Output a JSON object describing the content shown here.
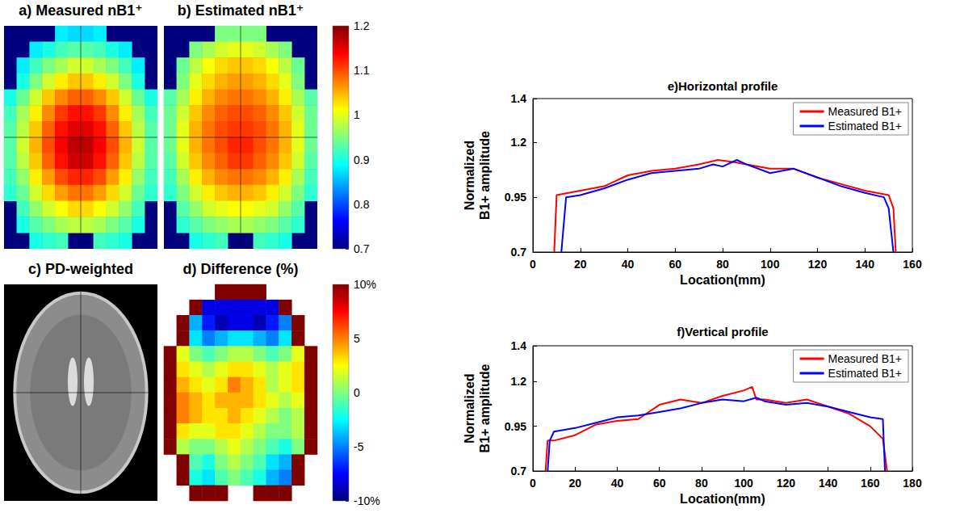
{
  "chart_data": [
    {
      "type": "heatmap",
      "title": "a) Measured nB1⁺",
      "cells": [
        [
          null,
          null,
          null,
          null,
          0.88,
          0.87,
          0.87,
          0.88,
          null,
          null,
          null,
          null
        ],
        [
          null,
          null,
          0.88,
          0.9,
          0.92,
          0.93,
          0.93,
          0.92,
          0.9,
          0.88,
          null,
          null
        ],
        [
          null,
          0.88,
          0.92,
          0.95,
          0.97,
          0.99,
          0.99,
          0.97,
          0.95,
          0.92,
          0.88,
          null
        ],
        [
          null,
          0.9,
          0.95,
          0.99,
          1.02,
          1.04,
          1.04,
          1.02,
          0.99,
          0.95,
          0.9,
          null
        ],
        [
          0.9,
          0.94,
          0.99,
          1.04,
          1.07,
          1.09,
          1.09,
          1.07,
          1.04,
          0.99,
          0.94,
          0.9
        ],
        [
          0.92,
          0.97,
          1.02,
          1.07,
          1.11,
          1.13,
          1.13,
          1.11,
          1.07,
          1.02,
          0.97,
          0.92
        ],
        [
          0.93,
          0.98,
          1.04,
          1.09,
          1.13,
          1.15,
          1.15,
          1.13,
          1.09,
          1.04,
          0.98,
          0.93
        ],
        [
          0.93,
          0.99,
          1.05,
          1.1,
          1.14,
          1.17,
          1.17,
          1.14,
          1.1,
          1.05,
          0.99,
          0.93
        ],
        [
          0.93,
          0.98,
          1.04,
          1.09,
          1.13,
          1.16,
          1.16,
          1.13,
          1.09,
          1.04,
          0.98,
          0.93
        ],
        [
          0.92,
          0.96,
          1.02,
          1.06,
          1.1,
          1.12,
          1.12,
          1.1,
          1.06,
          1.02,
          0.96,
          0.92
        ],
        [
          0.91,
          0.94,
          0.99,
          1.03,
          1.06,
          1.08,
          1.08,
          1.06,
          1.03,
          0.99,
          0.94,
          0.91
        ],
        [
          null,
          0.92,
          0.96,
          0.99,
          1.01,
          1.03,
          1.03,
          1.01,
          0.99,
          0.96,
          0.92,
          null
        ],
        [
          null,
          0.9,
          0.93,
          0.95,
          0.97,
          0.98,
          0.98,
          0.97,
          0.95,
          0.93,
          0.9,
          null
        ],
        [
          null,
          null,
          0.9,
          0.91,
          0.92,
          null,
          null,
          0.92,
          0.91,
          0.9,
          null,
          null
        ]
      ]
    },
    {
      "type": "heatmap",
      "title": "b) Estimated nB1⁺",
      "cells": [
        [
          null,
          null,
          null,
          null,
          0.95,
          0.95,
          0.95,
          0.95,
          null,
          null,
          null,
          null
        ],
        [
          null,
          null,
          0.95,
          0.97,
          0.99,
          1,
          1,
          0.99,
          0.97,
          0.95,
          null,
          null
        ],
        [
          null,
          0.94,
          0.98,
          1.01,
          1.03,
          1.04,
          1.04,
          1.03,
          1.01,
          0.98,
          0.94,
          null
        ],
        [
          null,
          0.95,
          1,
          1.03,
          1.05,
          1.06,
          1.06,
          1.05,
          1.03,
          1,
          0.95,
          null
        ],
        [
          0.93,
          0.97,
          1.02,
          1.05,
          1.07,
          1.08,
          1.08,
          1.07,
          1.05,
          1.02,
          0.97,
          0.93
        ],
        [
          0.94,
          0.99,
          1.04,
          1.07,
          1.09,
          1.1,
          1.1,
          1.09,
          1.07,
          1.04,
          0.99,
          0.94
        ],
        [
          0.94,
          1,
          1.05,
          1.08,
          1.1,
          1.11,
          1.11,
          1.1,
          1.08,
          1.05,
          1,
          0.94
        ],
        [
          0.94,
          1,
          1.05,
          1.08,
          1.1,
          1.12,
          1.12,
          1.1,
          1.08,
          1.05,
          1,
          0.94
        ],
        [
          0.93,
          0.99,
          1.04,
          1.07,
          1.09,
          1.11,
          1.11,
          1.09,
          1.07,
          1.04,
          0.99,
          0.93
        ],
        [
          0.92,
          0.97,
          1.02,
          1.05,
          1.07,
          1.08,
          1.08,
          1.07,
          1.05,
          1.02,
          0.97,
          0.92
        ],
        [
          0.91,
          0.95,
          0.99,
          1.02,
          1.04,
          1.05,
          1.05,
          1.04,
          1.02,
          0.99,
          0.95,
          0.91
        ],
        [
          null,
          0.93,
          0.96,
          0.99,
          1,
          1.01,
          1.01,
          1,
          0.99,
          0.96,
          0.93,
          null
        ],
        [
          null,
          0.91,
          0.93,
          0.95,
          0.96,
          0.97,
          0.97,
          0.96,
          0.95,
          0.93,
          0.91,
          null
        ],
        [
          null,
          null,
          0.9,
          0.91,
          0.92,
          null,
          null,
          0.92,
          0.91,
          0.9,
          null,
          null
        ]
      ],
      "colorbar": {
        "range": [
          0.7,
          1.2
        ],
        "ticks": [
          0.7,
          0.8,
          0.9,
          1,
          1.1,
          1.2
        ]
      }
    },
    {
      "type": "image",
      "title": "c) PD-weighted"
    },
    {
      "type": "heatmap",
      "title": "d) Difference (%)",
      "cells": [
        [
          null,
          null,
          null,
          null,
          10,
          10,
          10,
          10,
          null,
          null,
          null,
          null
        ],
        [
          null,
          null,
          10,
          -8,
          -8,
          -8,
          -8,
          -8,
          -8,
          10,
          null,
          null
        ],
        [
          null,
          10,
          -4,
          -7,
          -9,
          -8,
          -8,
          -9,
          -7,
          -5,
          10,
          null
        ],
        [
          null,
          10,
          -3,
          -5,
          -4,
          -3,
          -3,
          -4,
          -5,
          -3,
          10,
          null
        ],
        [
          10,
          2,
          0,
          -1,
          0,
          1,
          1,
          0,
          -1,
          0,
          2,
          10
        ],
        [
          10,
          3,
          2,
          1,
          2,
          3,
          3,
          2,
          1,
          2,
          3,
          10
        ],
        [
          10,
          4,
          3,
          2,
          3,
          5,
          4,
          3,
          1,
          2,
          3,
          10
        ],
        [
          10,
          5,
          4,
          3,
          4,
          4,
          4,
          3,
          2,
          1,
          2,
          10
        ],
        [
          10,
          5,
          4,
          3,
          3,
          4,
          3,
          2,
          1,
          0,
          1,
          10
        ],
        [
          10,
          3,
          2,
          2,
          3,
          3,
          2,
          1,
          0,
          0,
          1,
          10
        ],
        [
          10,
          1,
          0,
          0,
          1,
          2,
          1,
          0,
          -1,
          -2,
          0,
          10
        ],
        [
          null,
          10,
          -1,
          -2,
          0,
          1,
          0,
          -1,
          -3,
          -4,
          10,
          null
        ],
        [
          null,
          10,
          -2,
          -3,
          -1,
          0,
          -1,
          -2,
          -4,
          -5,
          10,
          null
        ],
        [
          null,
          null,
          10,
          10,
          10,
          null,
          null,
          10,
          10,
          10,
          null,
          null
        ]
      ],
      "colorbar": {
        "range": [
          -10,
          10
        ],
        "ticks": [
          {
            "value": 10,
            "label": "10%"
          },
          5,
          0,
          -5,
          {
            "value": -10,
            "label": "-10%"
          }
        ]
      }
    },
    {
      "type": "line",
      "title": "e)Horizontal profile",
      "x_label": "Location(mm)",
      "y_label": "Normalized B1+ amplitude",
      "xlim": [
        0,
        160
      ],
      "xticks": [
        0,
        20,
        40,
        60,
        80,
        100,
        120,
        140,
        160
      ],
      "ylim": [
        0.7,
        1.4
      ],
      "yticks": [
        0.7,
        0.95,
        1.2,
        1.4
      ],
      "legend": "upper right",
      "grid": false,
      "series": [
        {
          "name": "Measured B1+",
          "color": "#ff0000",
          "x": [
            9,
            10,
            20,
            30,
            40,
            50,
            60,
            70,
            78,
            85,
            90,
            100,
            110,
            120,
            130,
            140,
            150,
            152,
            153
          ],
          "values": [
            0.7,
            0.96,
            0.98,
            1.0,
            1.05,
            1.07,
            1.08,
            1.1,
            1.12,
            1.11,
            1.1,
            1.08,
            1.08,
            1.04,
            1.01,
            0.98,
            0.96,
            0.9,
            0.7
          ]
        },
        {
          "name": "Estimated B1+",
          "color": "#0000ff",
          "x": [
            12,
            14,
            20,
            30,
            40,
            50,
            60,
            70,
            76,
            80,
            86,
            90,
            100,
            110,
            120,
            130,
            140,
            148,
            150,
            152
          ],
          "values": [
            0.7,
            0.95,
            0.96,
            0.99,
            1.03,
            1.06,
            1.07,
            1.08,
            1.1,
            1.09,
            1.12,
            1.1,
            1.06,
            1.08,
            1.04,
            1.0,
            0.97,
            0.95,
            0.9,
            0.7
          ]
        }
      ]
    },
    {
      "type": "line",
      "title": "f)Vertical profile",
      "x_label": "Location(mm)",
      "y_label": "Normalized B1+ amplitude",
      "xlim": [
        0,
        180
      ],
      "xticks": [
        0,
        20,
        40,
        60,
        80,
        100,
        120,
        140,
        160,
        180
      ],
      "ylim": [
        0.7,
        1.4
      ],
      "yticks": [
        0.7,
        0.95,
        1.2,
        1.4
      ],
      "legend": "upper right",
      "grid": false,
      "series": [
        {
          "name": "Measured B1+",
          "color": "#ff0000",
          "x": [
            6,
            7,
            10,
            20,
            30,
            40,
            50,
            60,
            70,
            80,
            90,
            100,
            104,
            106,
            110,
            120,
            130,
            140,
            150,
            160,
            166,
            168
          ],
          "values": [
            0.7,
            0.87,
            0.87,
            0.9,
            0.96,
            0.98,
            0.99,
            1.07,
            1.1,
            1.08,
            1.12,
            1.15,
            1.17,
            1.1,
            1.1,
            1.08,
            1.1,
            1.06,
            1.02,
            0.95,
            0.88,
            0.7
          ]
        },
        {
          "name": "Estimated B1+",
          "color": "#0000ff",
          "x": [
            7,
            8,
            10,
            20,
            30,
            40,
            50,
            60,
            70,
            80,
            90,
            100,
            106,
            110,
            120,
            130,
            140,
            150,
            160,
            166,
            167
          ],
          "values": [
            0.7,
            0.87,
            0.92,
            0.94,
            0.97,
            1.0,
            1.01,
            1.03,
            1.05,
            1.08,
            1.1,
            1.09,
            1.11,
            1.09,
            1.07,
            1.08,
            1.06,
            1.03,
            1.0,
            0.99,
            0.7
          ]
        }
      ]
    }
  ]
}
